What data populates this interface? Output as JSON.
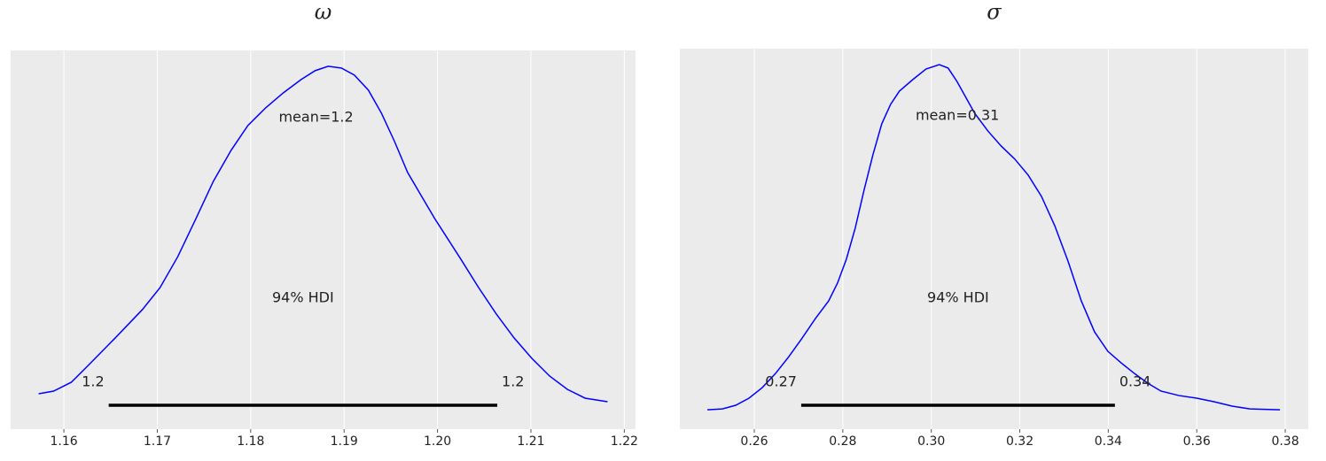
{
  "chart_data": [
    {
      "type": "density",
      "title": "ω",
      "color": "#0000ff",
      "grid": true,
      "x": [
        1.1573,
        1.1589,
        1.1608,
        1.1627,
        1.1655,
        1.1684,
        1.1703,
        1.1722,
        1.1741,
        1.176,
        1.1779,
        1.1797,
        1.1816,
        1.1835,
        1.1854,
        1.1869,
        1.1883,
        1.1897,
        1.1911,
        1.1926,
        1.194,
        1.1954,
        1.1968,
        1.1983,
        1.1997,
        1.2011,
        1.2025,
        1.2044,
        1.2063,
        1.2082,
        1.2101,
        1.212,
        1.2139,
        1.2158,
        1.2182
      ],
      "values": [
        1.04,
        1.32,
        2.27,
        4.16,
        7.0,
        10.02,
        12.38,
        15.69,
        19.66,
        23.72,
        27.03,
        29.68,
        31.57,
        33.18,
        34.59,
        35.54,
        36.01,
        35.82,
        35.07,
        33.46,
        31.0,
        27.98,
        24.67,
        22.12,
        19.75,
        17.58,
        15.41,
        12.38,
        9.55,
        7.0,
        4.82,
        2.93,
        1.51,
        0.57,
        0.19
      ],
      "xlim": [
        1.1543,
        1.2212
      ],
      "ylim": [
        -2.74,
        37.7
      ],
      "xticks": [
        1.16,
        1.17,
        1.18,
        1.19,
        {
          "value": 1.2,
          "label": "1.20"
        },
        1.21,
        1.22
      ],
      "mean": {
        "value": 1.187,
        "label": "mean=1.2"
      },
      "hdi": [
        {
          "value": 1.1648,
          "label": "1.2"
        },
        {
          "value": 1.2064,
          "label": "1.2"
        }
      ],
      "hdi_label": "94% HDI"
    },
    {
      "type": "density",
      "title": "σ",
      "color": "#0000ff",
      "grid": true,
      "x": [
        0.2494,
        0.2528,
        0.2558,
        0.2588,
        0.2618,
        0.2648,
        0.2678,
        0.2708,
        0.2738,
        0.2768,
        0.2788,
        0.2808,
        0.2828,
        0.2848,
        0.2868,
        0.2888,
        0.2908,
        0.2928,
        0.2958,
        0.2988,
        0.3018,
        0.3038,
        0.3058,
        0.3078,
        0.3098,
        0.3128,
        0.3158,
        0.3189,
        0.3219,
        0.3249,
        0.3279,
        0.3309,
        0.3339,
        0.3369,
        0.3399,
        0.3429,
        0.3459,
        0.3489,
        0.3519,
        0.356,
        0.36,
        0.364,
        0.368,
        0.372,
        0.3788
      ],
      "values": [
        0.05,
        0.1,
        0.31,
        0.72,
        1.33,
        2.15,
        3.12,
        4.19,
        5.32,
        6.34,
        7.37,
        8.75,
        10.54,
        12.74,
        14.78,
        16.57,
        17.7,
        18.47,
        19.13,
        19.74,
        20.0,
        19.8,
        19.03,
        18.11,
        17.19,
        16.16,
        15.29,
        14.53,
        13.61,
        12.38,
        10.69,
        8.64,
        6.34,
        4.55,
        3.43,
        2.76,
        2.15,
        1.59,
        1.13,
        0.87,
        0.72,
        0.51,
        0.26,
        0.1,
        0.05
      ],
      "xlim": [
        0.24317,
        0.3852
      ],
      "ylim": [
        -1.07,
        20.92
      ],
      "xticks": [
        0.26,
        0.28,
        {
          "value": 0.3,
          "label": "0.30"
        },
        0.32,
        0.34,
        0.36,
        0.38
      ],
      "mean": {
        "value": 0.3059,
        "label": "mean=0.31"
      },
      "hdi": [
        {
          "value": 0.2706,
          "label": "0.27"
        },
        {
          "value": 0.3415,
          "label": "0.34"
        }
      ],
      "hdi_label": "94% HDI"
    }
  ]
}
